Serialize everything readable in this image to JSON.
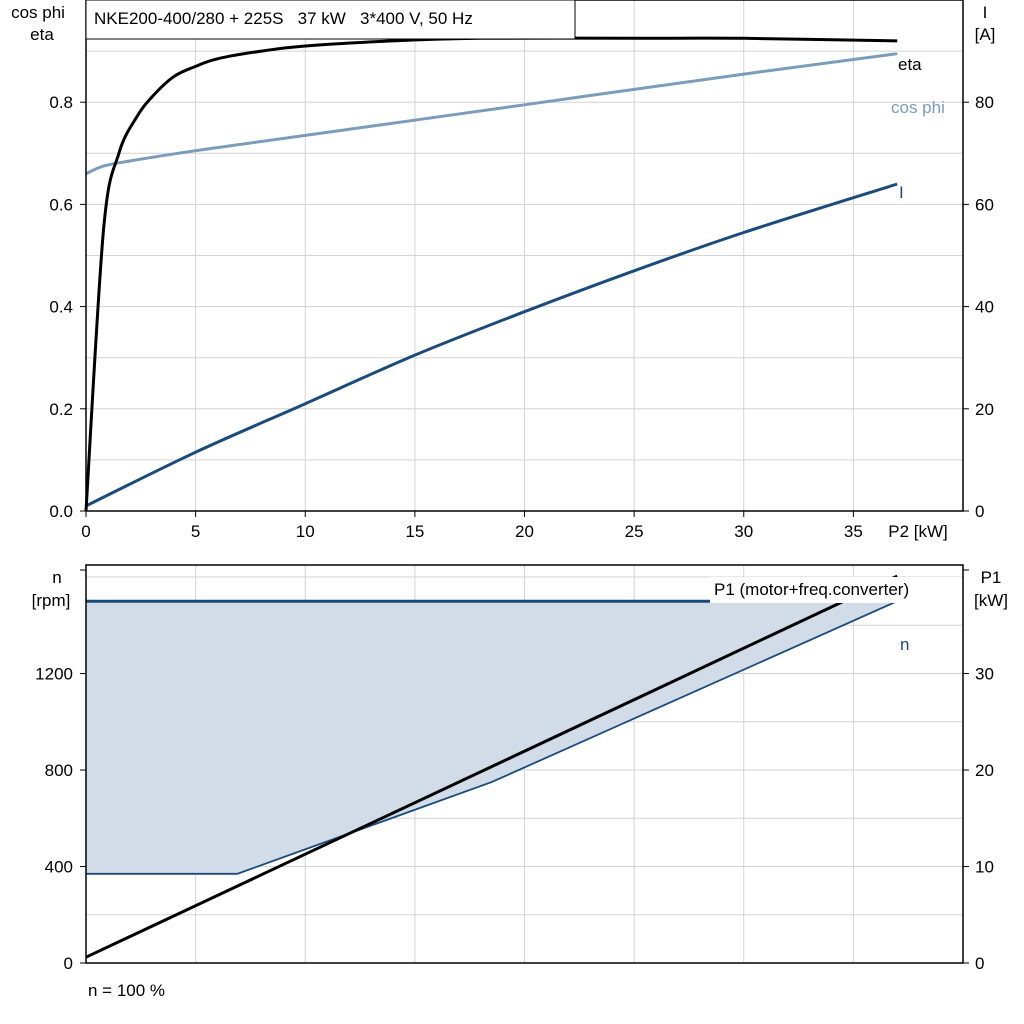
{
  "title": "NKE200-400/280 + 225S   37 kW   3*400 V, 50 Hz",
  "footer_note": "n = 100 %",
  "colors": {
    "eta": "#000000",
    "cos_phi": "#7b9cbb",
    "current": "#1a4b7a",
    "speed": "#1a4b7a",
    "speed_band": "#d1dce8",
    "p1": "#000000",
    "grid": "#d3d3d3"
  },
  "chart_data": [
    {
      "type": "line",
      "xlabel": "P2 [kW]",
      "ylabel_left": [
        "cos phi",
        "eta"
      ],
      "ylabel_right": [
        "I",
        "[A]"
      ],
      "xlim": [
        0,
        40
      ],
      "ylim_left": [
        0,
        1.0
      ],
      "ylim_right": [
        0,
        100
      ],
      "xticks": [
        0,
        5,
        10,
        15,
        20,
        25,
        30,
        35
      ],
      "yticks_left": [
        "0.0",
        "0.2",
        "0.4",
        "0.6",
        "0.8"
      ],
      "yticks_right": [
        0,
        20,
        40,
        60,
        80
      ],
      "grid": true,
      "series": [
        {
          "name": "eta",
          "axis": "left",
          "x": [
            0,
            0.8,
            1.5,
            2.3,
            3,
            4,
            5,
            6,
            8,
            10,
            14,
            18,
            25,
            30,
            37
          ],
          "y": [
            0.0,
            0.55,
            0.7,
            0.77,
            0.81,
            0.85,
            0.87,
            0.885,
            0.9,
            0.91,
            0.92,
            0.925,
            0.925,
            0.925,
            0.92
          ]
        },
        {
          "name": "cos phi",
          "axis": "left",
          "x": [
            0,
            0.8,
            2,
            5,
            10,
            20,
            30,
            37
          ],
          "y": [
            0.66,
            0.675,
            0.685,
            0.705,
            0.735,
            0.795,
            0.855,
            0.895
          ]
        },
        {
          "name": "I",
          "axis": "right",
          "x": [
            0,
            5,
            10,
            15,
            20,
            25,
            30,
            37
          ],
          "y": [
            1,
            11.5,
            21,
            30.5,
            39,
            47,
            54.5,
            64
          ]
        }
      ]
    },
    {
      "type": "line",
      "ylabel_left": [
        "n",
        "[rpm]"
      ],
      "ylabel_right": [
        "P1",
        "[kW]"
      ],
      "xlim": [
        0,
        40
      ],
      "ylim_left": [
        0,
        1650
      ],
      "ylim_right": [
        0,
        41.25
      ],
      "yticks_left": [
        0,
        400,
        800,
        1200
      ],
      "yticks_right": [
        0,
        10,
        20,
        30
      ],
      "grid": true,
      "series": [
        {
          "name": "n",
          "axis": "left",
          "x": [
            0,
            37
          ],
          "y": [
            1500,
            1500
          ]
        },
        {
          "name": "n",
          "axis": "left",
          "x": [
            0,
            6.9,
            18.5,
            37
          ],
          "y": [
            370,
            370,
            750,
            1500
          ]
        },
        {
          "name": "P1 (motor+freq.converter)",
          "axis": "right",
          "x": [
            0,
            37
          ],
          "y": [
            0.6,
            40.1
          ]
        }
      ]
    }
  ]
}
